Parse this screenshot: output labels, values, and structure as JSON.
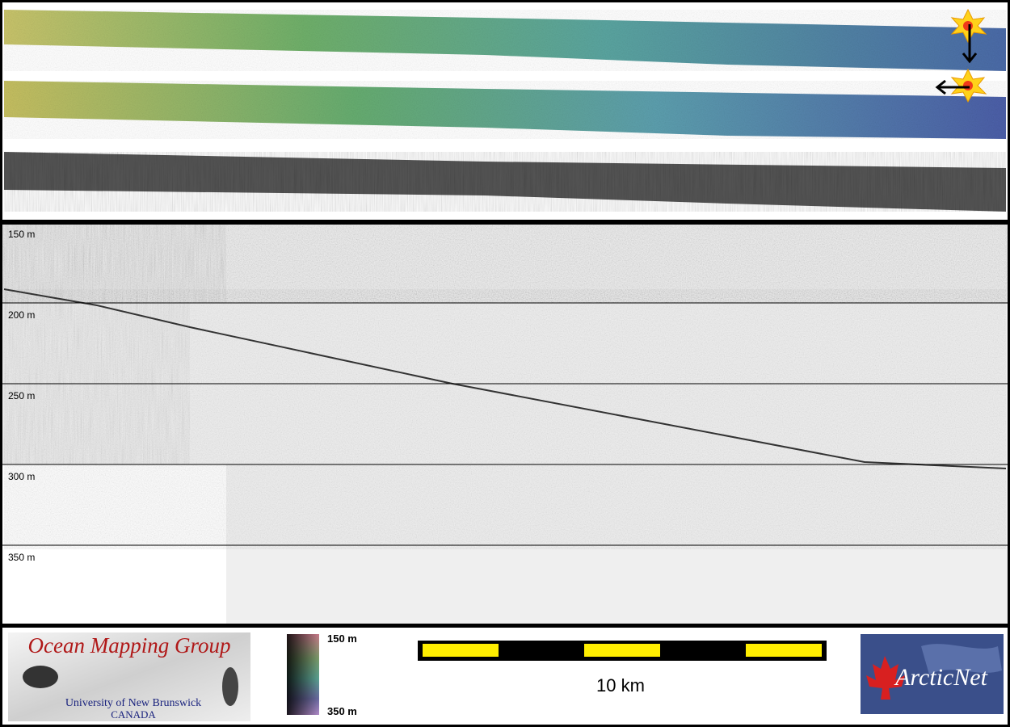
{
  "depth_labels": [
    "150 m",
    "200 m",
    "250 m",
    "300 m",
    "350 m"
  ],
  "legend": {
    "colorbar_top": "150 m",
    "colorbar_bottom": "350 m",
    "scale": "10 km"
  },
  "logos": {
    "omg_title": "Ocean Mapping Group",
    "omg_university": "University of New Brunswick",
    "omg_country": "CANADA",
    "arcticnet": "ArcticNet"
  }
}
